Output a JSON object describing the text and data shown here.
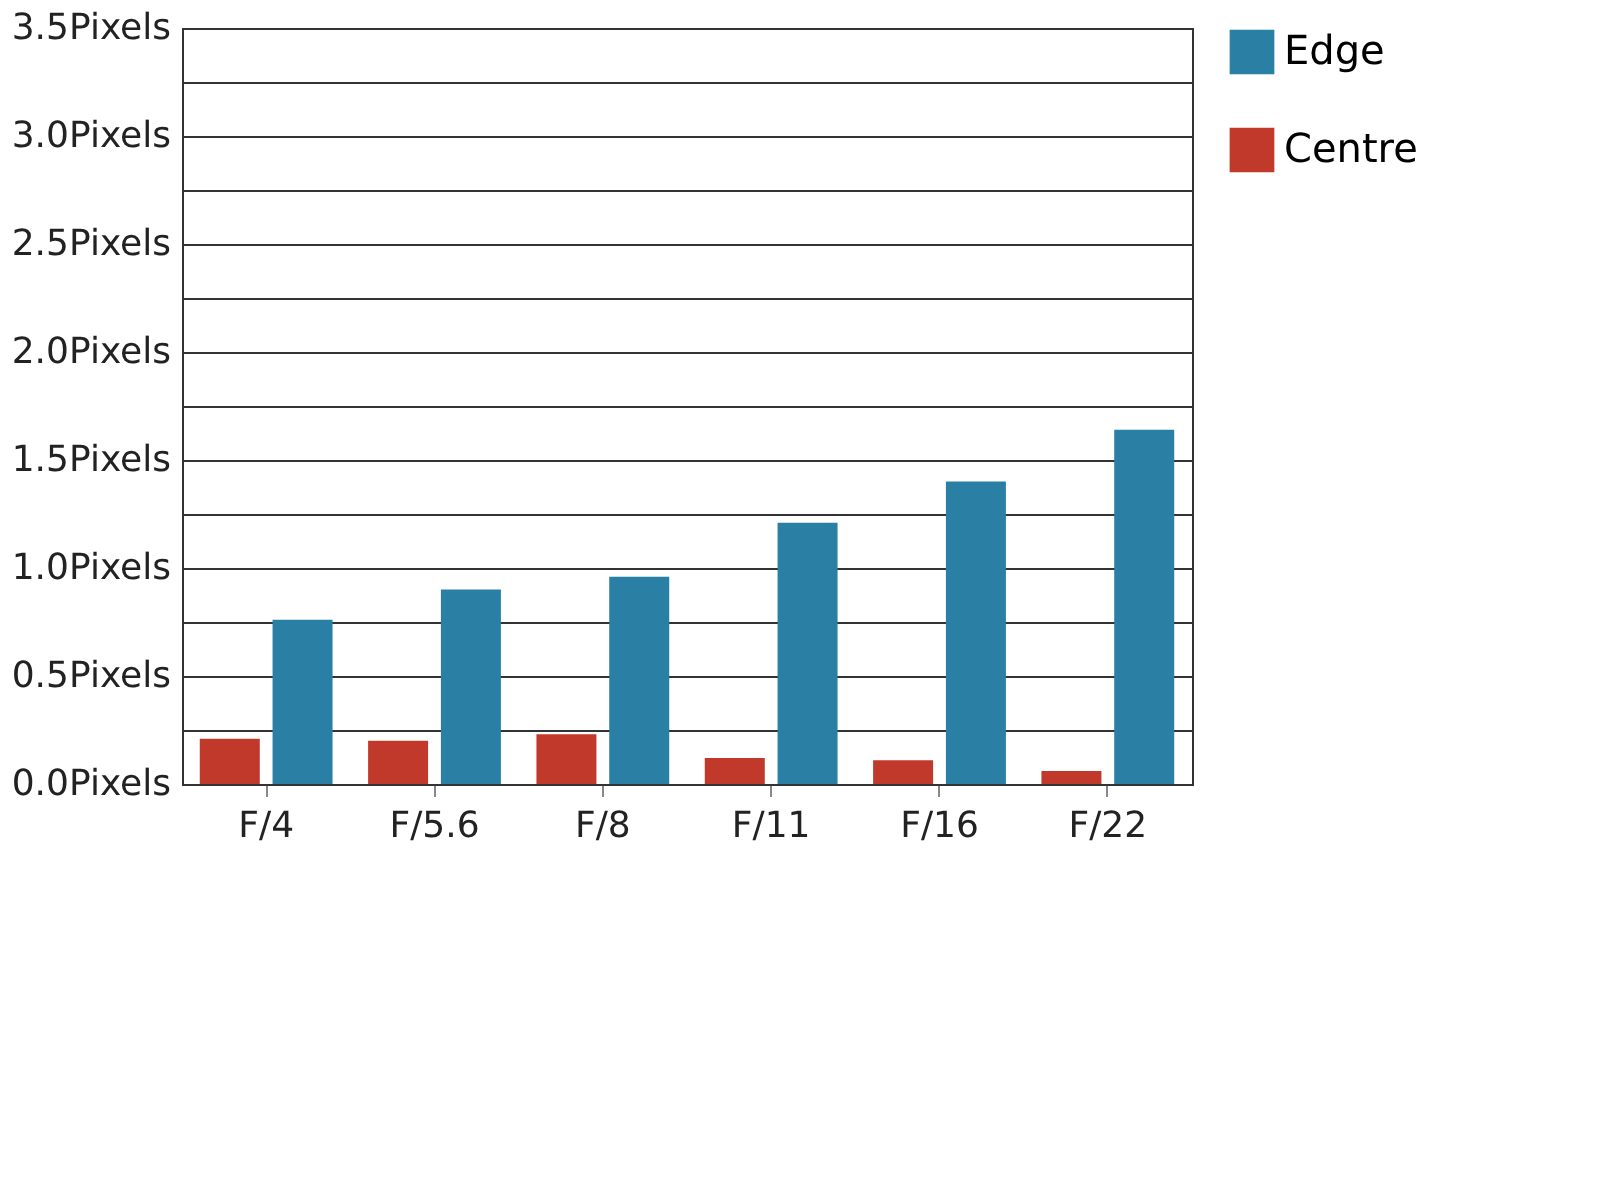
{
  "chart_data": {
    "type": "bar",
    "categories": [
      "F/4",
      "F/5.6",
      "F/8",
      "F/11",
      "F/16",
      "F/22"
    ],
    "series": [
      {
        "name": "Centre",
        "color": "#c0392b",
        "values": [
          0.21,
          0.2,
          0.23,
          0.12,
          0.11,
          0.06
        ]
      },
      {
        "name": "Edge",
        "color": "#2a7fa5",
        "values": [
          0.76,
          0.9,
          0.96,
          1.21,
          1.4,
          1.64
        ]
      }
    ],
    "ylim": [
      0,
      3.5
    ],
    "yticks": [
      {
        "value": 0,
        "label": "0.0Pixels"
      },
      {
        "value": 0.25,
        "label": null
      },
      {
        "value": 0.5,
        "label": "0.5Pixels"
      },
      {
        "value": 0.75,
        "label": null
      },
      {
        "value": 1,
        "label": "1.0Pixels"
      },
      {
        "value": 1.25,
        "label": null
      },
      {
        "value": 1.5,
        "label": "1.5Pixels"
      },
      {
        "value": 1.75,
        "label": null
      },
      {
        "value": 2,
        "label": "2.0Pixels"
      },
      {
        "value": 2.25,
        "label": null
      },
      {
        "value": 2.5,
        "label": "2.5Pixels"
      },
      {
        "value": 2.75,
        "label": null
      },
      {
        "value": 3,
        "label": "3.0Pixels"
      },
      {
        "value": 3.25,
        "label": null
      },
      {
        "value": 3.5,
        "label": "3.5Pixels"
      }
    ],
    "grid": "y",
    "legend": "top right"
  }
}
